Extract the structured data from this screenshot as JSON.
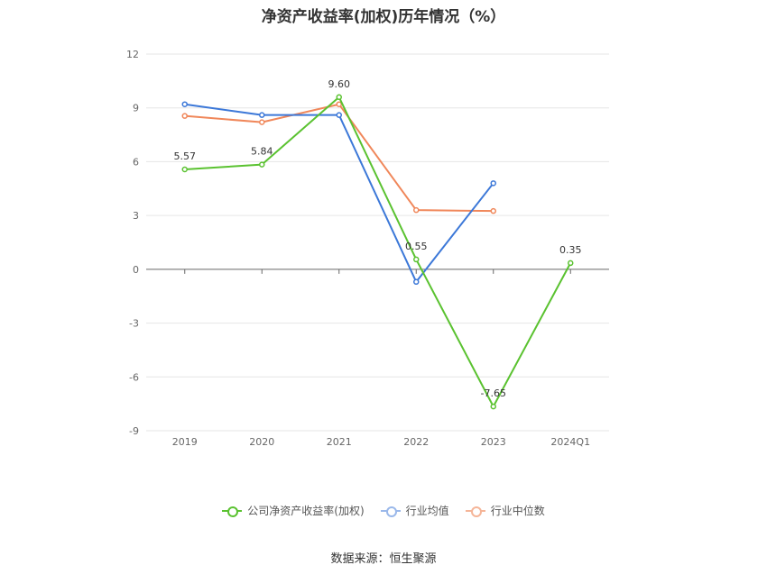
{
  "chart_data": {
    "type": "line",
    "title": "净资产收益率(加权)历年情况（%）",
    "categories": [
      "2019",
      "2020",
      "2021",
      "2022",
      "2023",
      "2024Q1"
    ],
    "ylim": [
      -9,
      12
    ],
    "yticks": [
      12,
      9,
      6,
      3,
      0,
      -3,
      -6,
      -9
    ],
    "grid": true,
    "legend_position": "bottom",
    "series": [
      {
        "name": "公司净资产收益率(加权)",
        "color": "#5ac230",
        "values": [
          5.57,
          5.84,
          9.6,
          0.55,
          -7.65,
          0.35
        ],
        "labels": [
          "5.57",
          "5.84",
          "9.60",
          "0.55",
          "-7.65",
          "0.35"
        ]
      },
      {
        "name": "行业均值",
        "color": "#3c78d8",
        "values": [
          9.2,
          8.6,
          8.6,
          -0.7,
          4.8,
          null
        ]
      },
      {
        "name": "行业中位数",
        "color": "#f0875a",
        "values": [
          8.55,
          8.2,
          9.2,
          3.3,
          3.25,
          null
        ]
      }
    ]
  },
  "source": "数据来源：恒生聚源"
}
